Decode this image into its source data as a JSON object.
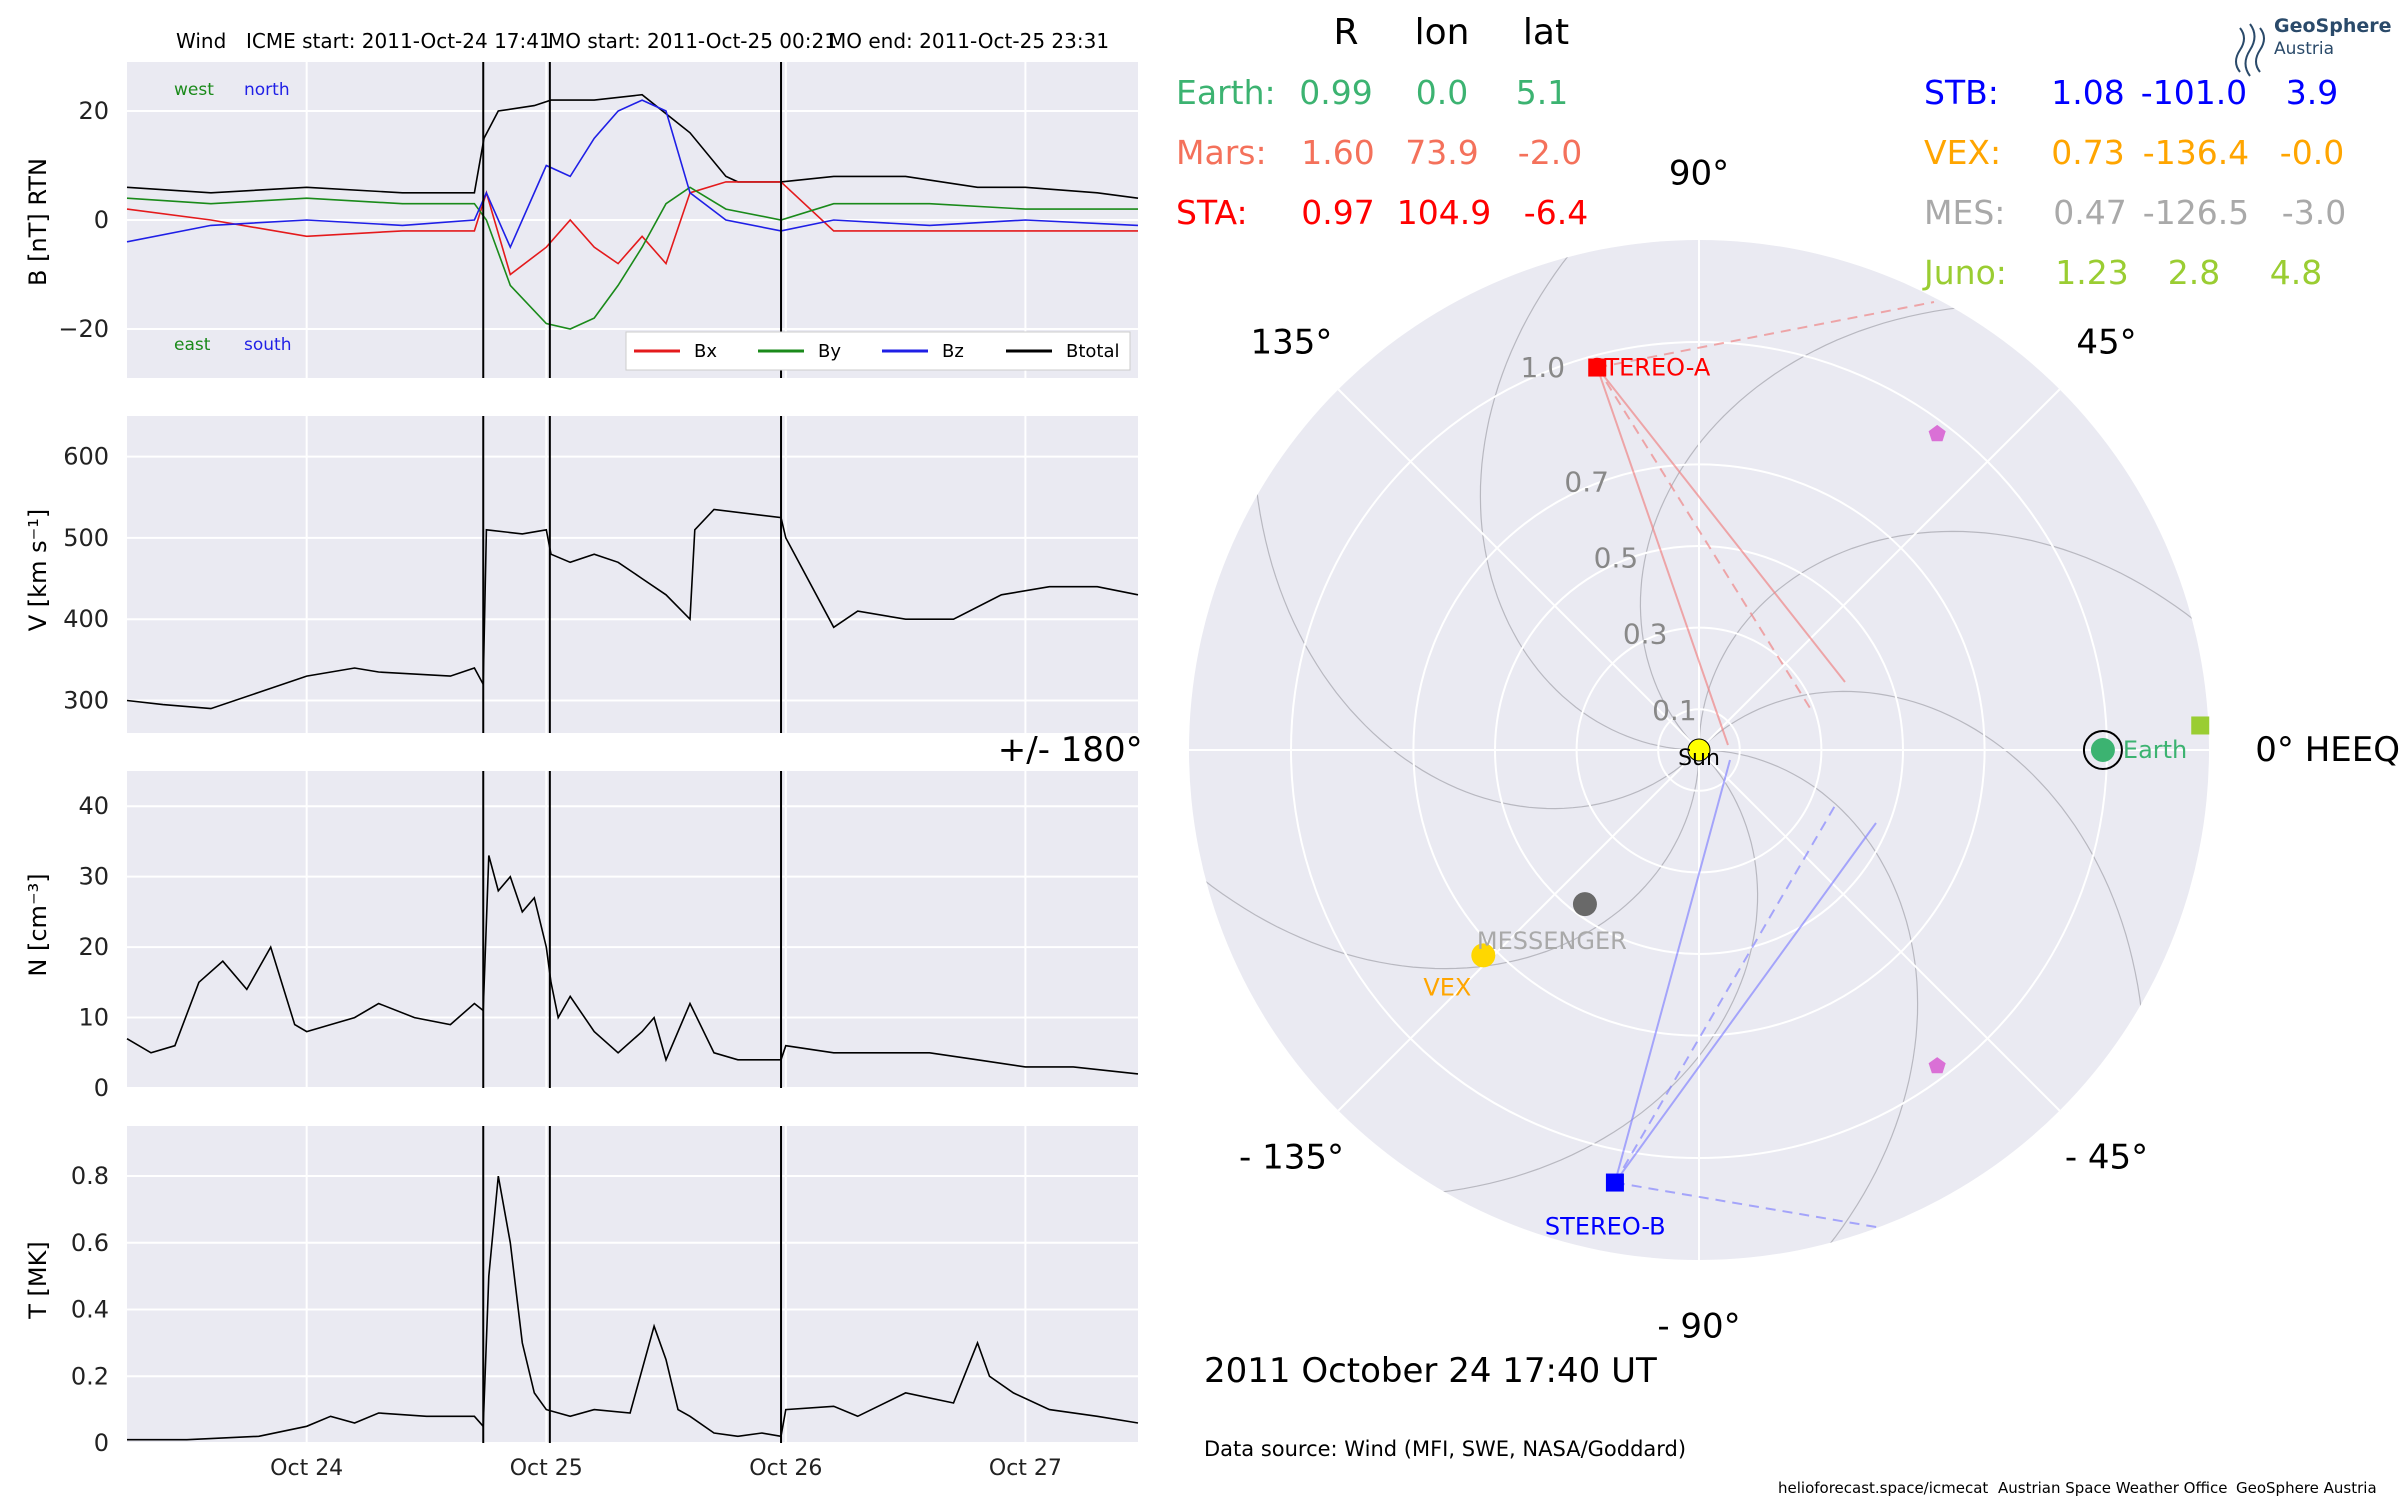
{
  "panel_title": {
    "spacecraft": "Wind",
    "icme_start": "ICME start: 2011-Oct-24 17:41",
    "mo_start": "MO start: 2011-Oct-25 00:21",
    "mo_end": "MO end: 2011-Oct-25 23:31"
  },
  "x_ticks": [
    "Oct 24",
    "Oct 25",
    "Oct 26",
    "Oct 27"
  ],
  "event_times_day": [
    24.737,
    25.015,
    25.98
  ],
  "x_range": [
    23.25,
    27.47
  ],
  "chart_data": [
    {
      "type": "line",
      "ylabel": "B [nT] RTN",
      "ylim": [
        -29,
        29
      ],
      "yticks": [
        -20,
        0,
        20
      ],
      "grid": true,
      "legend": [
        "Bx",
        "By",
        "Bz",
        "Btotal"
      ],
      "corner_labels": {
        "west": "west",
        "north": "north",
        "east": "east",
        "south": "south"
      },
      "series": [
        {
          "name": "Btotal",
          "color": "#000000",
          "x": [
            23.25,
            23.6,
            24.0,
            24.4,
            24.7,
            24.74,
            24.8,
            24.95,
            25.02,
            25.2,
            25.4,
            25.6,
            25.75,
            25.8,
            25.98,
            26.2,
            26.5,
            26.8,
            27.0,
            27.3,
            27.47
          ],
          "values": [
            6,
            5,
            6,
            5,
            5,
            15,
            20,
            21,
            22,
            22,
            23,
            16,
            8,
            7,
            7,
            8,
            8,
            6,
            6,
            5,
            4
          ]
        },
        {
          "name": "Bx",
          "color": "#e41a1c",
          "x": [
            23.25,
            23.6,
            24.0,
            24.4,
            24.7,
            24.75,
            24.85,
            25.0,
            25.1,
            25.2,
            25.3,
            25.4,
            25.5,
            25.6,
            25.75,
            25.98,
            26.2,
            26.6,
            27.0,
            27.47
          ],
          "values": [
            2,
            0,
            -3,
            -2,
            -2,
            5,
            -10,
            -5,
            0,
            -5,
            -8,
            -3,
            -8,
            5,
            7,
            7,
            -2,
            -2,
            -2,
            -2
          ]
        },
        {
          "name": "By",
          "color": "#1a8a1a",
          "x": [
            23.25,
            23.6,
            24.0,
            24.4,
            24.7,
            24.75,
            24.85,
            25.0,
            25.1,
            25.2,
            25.3,
            25.4,
            25.5,
            25.6,
            25.75,
            25.98,
            26.2,
            26.6,
            27.0,
            27.47
          ],
          "values": [
            4,
            3,
            4,
            3,
            3,
            0,
            -12,
            -19,
            -20,
            -18,
            -12,
            -5,
            3,
            6,
            2,
            0,
            3,
            3,
            2,
            2
          ]
        },
        {
          "name": "Bz",
          "color": "#1f1fe6",
          "x": [
            23.25,
            23.6,
            24.0,
            24.4,
            24.7,
            24.75,
            24.85,
            25.0,
            25.1,
            25.2,
            25.3,
            25.4,
            25.5,
            25.6,
            25.75,
            25.98,
            26.2,
            26.6,
            27.0,
            27.47
          ],
          "values": [
            -4,
            -1,
            0,
            -1,
            0,
            5,
            -5,
            10,
            8,
            15,
            20,
            22,
            20,
            5,
            0,
            -2,
            0,
            -1,
            0,
            -1
          ]
        }
      ]
    },
    {
      "type": "line",
      "ylabel": "V [km s⁻¹]",
      "ylim": [
        260,
        650
      ],
      "yticks": [
        300,
        400,
        500,
        600
      ],
      "grid": true,
      "series": [
        {
          "name": "V",
          "color": "#000000",
          "x": [
            23.25,
            23.4,
            23.6,
            23.8,
            24.0,
            24.2,
            24.3,
            24.6,
            24.7,
            24.737,
            24.75,
            24.9,
            25.0,
            25.02,
            25.1,
            25.2,
            25.3,
            25.4,
            25.5,
            25.6,
            25.62,
            25.7,
            25.98,
            26.0,
            26.2,
            26.3,
            26.5,
            26.7,
            26.9,
            27.1,
            27.3,
            27.47
          ],
          "values": [
            300,
            295,
            290,
            310,
            330,
            340,
            335,
            330,
            340,
            320,
            510,
            505,
            510,
            480,
            470,
            480,
            470,
            450,
            430,
            400,
            510,
            535,
            525,
            500,
            390,
            410,
            400,
            400,
            430,
            440,
            440,
            430
          ]
        }
      ]
    },
    {
      "type": "line",
      "ylabel": "N [cm⁻³]",
      "ylim": [
        0,
        45
      ],
      "yticks": [
        0,
        10,
        20,
        30,
        40
      ],
      "grid": true,
      "series": [
        {
          "name": "N",
          "color": "#000000",
          "x": [
            23.25,
            23.35,
            23.45,
            23.55,
            23.65,
            23.75,
            23.85,
            23.95,
            24.0,
            24.1,
            24.2,
            24.3,
            24.45,
            24.6,
            24.7,
            24.737,
            24.76,
            24.8,
            24.85,
            24.9,
            24.95,
            25.0,
            25.02,
            25.05,
            25.1,
            25.2,
            25.3,
            25.4,
            25.45,
            25.5,
            25.6,
            25.7,
            25.8,
            25.9,
            25.98,
            26.0,
            26.2,
            26.4,
            26.6,
            26.8,
            27.0,
            27.2,
            27.47
          ],
          "values": [
            7,
            5,
            6,
            15,
            18,
            14,
            20,
            9,
            8,
            9,
            10,
            12,
            10,
            9,
            12,
            11,
            33,
            28,
            30,
            25,
            27,
            20,
            15,
            10,
            13,
            8,
            5,
            8,
            10,
            4,
            12,
            5,
            4,
            4,
            4,
            6,
            5,
            5,
            5,
            4,
            3,
            3,
            2
          ]
        }
      ]
    },
    {
      "type": "line",
      "ylabel": "T [MK]",
      "ylim": [
        0,
        0.95
      ],
      "yticks": [
        0.0,
        0.2,
        0.4,
        0.6,
        0.8
      ],
      "grid": true,
      "series": [
        {
          "name": "T",
          "color": "#000000",
          "x": [
            23.25,
            23.5,
            23.8,
            24.0,
            24.1,
            24.2,
            24.3,
            24.5,
            24.7,
            24.737,
            24.76,
            24.8,
            24.85,
            24.9,
            24.95,
            25.0,
            25.1,
            25.2,
            25.35,
            25.45,
            25.5,
            25.55,
            25.6,
            25.7,
            25.8,
            25.9,
            25.98,
            26.0,
            26.2,
            26.3,
            26.5,
            26.7,
            26.8,
            26.85,
            26.95,
            27.1,
            27.3,
            27.47
          ],
          "values": [
            0.01,
            0.01,
            0.02,
            0.05,
            0.08,
            0.06,
            0.09,
            0.08,
            0.08,
            0.05,
            0.5,
            0.8,
            0.6,
            0.3,
            0.15,
            0.1,
            0.08,
            0.1,
            0.09,
            0.35,
            0.25,
            0.1,
            0.08,
            0.03,
            0.02,
            0.03,
            0.02,
            0.1,
            0.11,
            0.08,
            0.15,
            0.12,
            0.3,
            0.2,
            0.15,
            0.1,
            0.08,
            0.06
          ]
        }
      ]
    },
    {
      "type": "scatter",
      "title": "Polar HEEQ",
      "header_cols": [
        "R",
        "lon",
        "lat"
      ],
      "angle_ticks": [
        "0° HEEQ",
        "45°",
        "90°",
        "135°",
        "+/- 180°",
        "- 135°",
        "- 90°",
        "- 45°"
      ],
      "radial_ticks": [
        "0.1",
        "0.3",
        "0.5",
        "0.7",
        "1.0"
      ],
      "table_left": [
        {
          "name": "Earth:",
          "r": "0.99",
          "lon": "0.0",
          "lat": "5.1",
          "color": "#3cb371"
        },
        {
          "name": "Mars:",
          "r": "1.60",
          "lon": "73.9",
          "lat": "-2.0",
          "color": "#f4715b"
        },
        {
          "name": "STA:",
          "r": "0.97",
          "lon": "104.9",
          "lat": "-6.4",
          "color": "#ff0000"
        }
      ],
      "table_right": [
        {
          "name": "STB:",
          "r": "1.08",
          "lon": "-101.0",
          "lat": "3.9",
          "color": "#0000ff"
        },
        {
          "name": "VEX:",
          "r": "0.73",
          "lon": "-136.4",
          "lat": "-0.0",
          "color": "#ffa500"
        },
        {
          "name": "MES:",
          "r": "0.47",
          "lon": "-126.5",
          "lat": "-3.0",
          "color": "#a9a9a9"
        },
        {
          "name": "Juno:",
          "r": "1.23",
          "lon": "2.8",
          "lat": "4.8",
          "color": "#9acd32"
        }
      ],
      "bodies": [
        {
          "label": "Sun",
          "r": 0.0,
          "lon": 0.0,
          "color": "#ffff00",
          "marker": "circle",
          "label_color": "#000000"
        },
        {
          "label": "Earth",
          "r": 0.99,
          "lon": 0.0,
          "color": "#3cb371",
          "marker": "circle",
          "label_color": "#3cb371"
        },
        {
          "label": "STEREO-A",
          "r": 0.97,
          "lon": 104.9,
          "color": "#ff0000",
          "marker": "square",
          "label_color": "#ff0000"
        },
        {
          "label": "STEREO-B",
          "r": 1.08,
          "lon": -101.0,
          "color": "#0000ff",
          "marker": "square",
          "label_color": "#0000ff"
        },
        {
          "label": "VEX",
          "r": 0.73,
          "lon": -136.4,
          "color": "#ffd700",
          "marker": "circle",
          "label_color": "#ffa500"
        },
        {
          "label": "MESSENGER",
          "r": 0.47,
          "lon": -126.5,
          "color": "#696969",
          "marker": "circle",
          "label_color": "#a9a9a9"
        },
        {
          "label": "",
          "r": 1.23,
          "lon": 2.8,
          "color": "#9acd32",
          "marker": "square",
          "label_color": "#9acd32"
        },
        {
          "label": "",
          "r": 0.97,
          "lon": 53.0,
          "color": "#da70d6",
          "marker": "pentagon",
          "label_color": "#da70d6"
        },
        {
          "label": "",
          "r": 0.97,
          "lon": -53.0,
          "color": "#da70d6",
          "marker": "pentagon",
          "label_color": "#da70d6"
        }
      ],
      "date_text": "2011 October 24  17:40 UT",
      "data_source": "Data source: Wind (MFI, SWE, NASA/Goddard)"
    }
  ],
  "logo": {
    "line1": "GeoSphere",
    "line2": "Austria"
  },
  "footer": {
    "site": "helioforecast.space/icmecat",
    "office": "Austrian Space Weather Office",
    "org": "GeoSphere Austria"
  }
}
